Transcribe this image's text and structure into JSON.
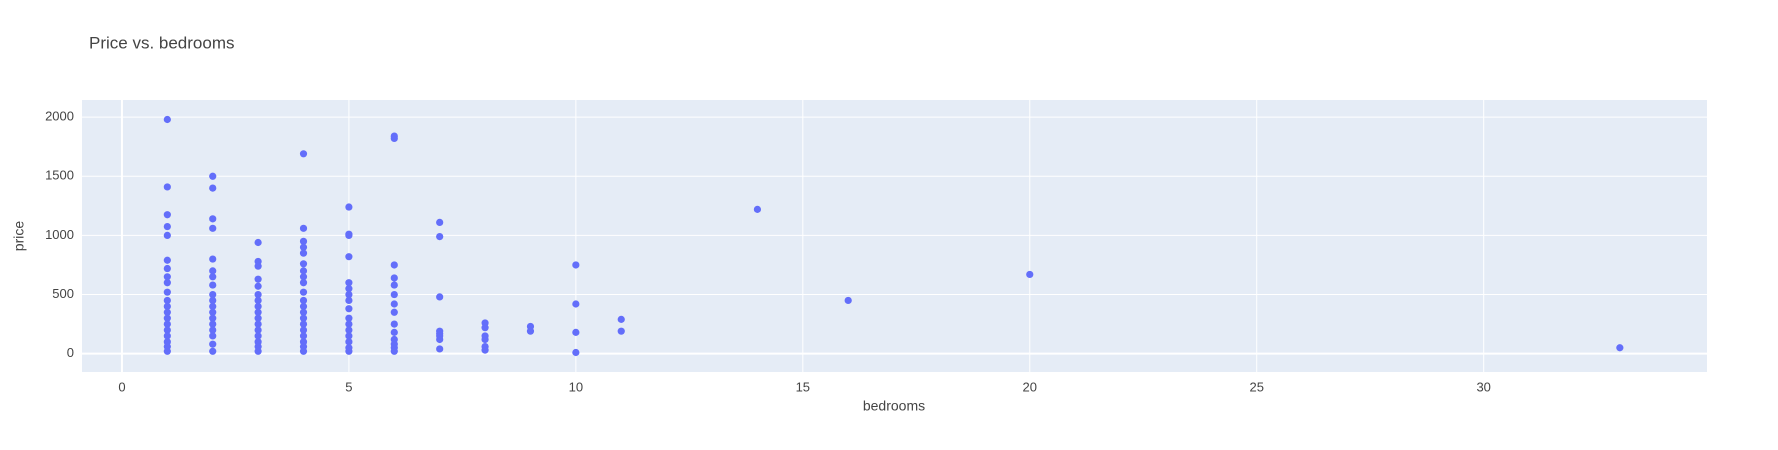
{
  "chart_data": {
    "type": "scatter",
    "title": "Price vs. bedrooms",
    "x_label": "bedrooms",
    "y_label": "price",
    "color": "#636efa",
    "x": [
      1,
      1,
      1,
      1,
      1,
      1,
      1,
      1,
      1,
      1,
      1,
      1,
      1,
      1,
      1,
      1,
      1,
      1,
      1,
      1,
      2,
      2,
      2,
      2,
      2,
      2,
      2,
      2,
      2,
      2,
      2,
      2,
      2,
      2,
      2,
      2,
      2,
      2,
      3,
      3,
      3,
      3,
      3,
      3,
      3,
      3,
      3,
      3,
      3,
      3,
      3,
      3,
      3,
      3,
      4,
      4,
      4,
      4,
      4,
      4,
      4,
      4,
      4,
      4,
      4,
      4,
      4,
      4,
      4,
      4,
      4,
      4,
      4,
      4,
      5,
      5,
      5,
      5,
      5,
      5,
      5,
      5,
      5,
      5,
      5,
      5,
      5,
      5,
      5,
      5,
      6,
      6,
      6,
      6,
      6,
      6,
      6,
      6,
      6,
      6,
      6,
      6,
      6,
      6,
      7,
      7,
      7,
      7,
      7,
      7,
      7,
      7,
      8,
      8,
      8,
      8,
      8,
      8,
      9,
      9,
      10,
      10,
      10,
      10,
      11,
      11,
      14,
      16,
      20,
      33
    ],
    "values": [
      1980,
      1410,
      1175,
      1075,
      1000,
      790,
      720,
      650,
      600,
      520,
      450,
      400,
      350,
      300,
      250,
      200,
      150,
      100,
      60,
      20,
      1500,
      1400,
      1140,
      1060,
      800,
      700,
      650,
      580,
      500,
      450,
      400,
      350,
      300,
      250,
      200,
      150,
      80,
      20,
      940,
      780,
      740,
      630,
      570,
      500,
      450,
      400,
      350,
      300,
      250,
      200,
      150,
      100,
      60,
      20,
      1690,
      1060,
      950,
      900,
      850,
      760,
      700,
      650,
      600,
      520,
      450,
      400,
      350,
      300,
      250,
      200,
      150,
      100,
      60,
      20,
      1240,
      1010,
      1000,
      820,
      600,
      550,
      500,
      450,
      380,
      300,
      250,
      200,
      150,
      100,
      50,
      20,
      1840,
      1820,
      750,
      640,
      580,
      500,
      420,
      350,
      250,
      180,
      120,
      80,
      50,
      20,
      1110,
      990,
      480,
      190,
      170,
      150,
      120,
      40,
      260,
      220,
      150,
      120,
      60,
      30,
      230,
      190,
      750,
      420,
      180,
      10,
      290,
      190,
      1220,
      450,
      670,
      50
    ],
    "xlim": [
      -0.88,
      34.92
    ],
    "xticks": [
      0,
      5,
      10,
      15,
      20,
      25,
      30
    ],
    "ylim": [
      -155,
      2145
    ],
    "yticks": [
      0,
      500,
      1000,
      1500,
      2000
    ],
    "grid": true
  }
}
